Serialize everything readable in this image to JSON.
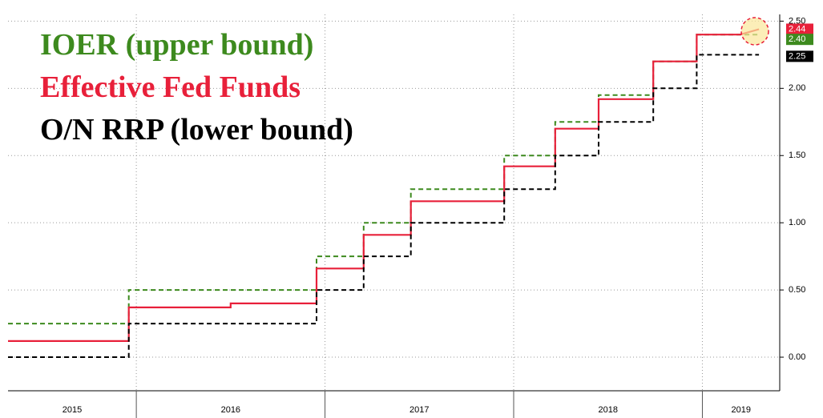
{
  "chart_data": {
    "type": "step-line",
    "xlim": [
      2015.32,
      2019.41
    ],
    "xticks": [
      2016,
      2017,
      2018,
      2019
    ],
    "x_categories": [
      "2015",
      "2016",
      "2017",
      "2018",
      "2019"
    ],
    "ylim": [
      -0.25,
      2.55
    ],
    "yticks": [
      {
        "value": 0,
        "label": "0.00"
      },
      {
        "value": 0.5,
        "label": "0.50"
      },
      {
        "value": 1,
        "label": "1.00"
      },
      {
        "value": 1.5,
        "label": "1.50"
      },
      {
        "value": 2,
        "label": "2.00"
      },
      {
        "value": 2.5,
        "label": "2.50"
      }
    ],
    "grid": true,
    "series": [
      {
        "name": "IOER (upper bound)",
        "color": "#3d8a1e",
        "dash": true,
        "last_label": "2.40",
        "x": [
          2015.32,
          2015.96,
          2015.96,
          2016.955,
          2016.955,
          2017.205,
          2017.205,
          2017.455,
          2017.455,
          2017.95,
          2017.95,
          2018.22,
          2018.22,
          2018.45,
          2018.45,
          2018.74,
          2018.74,
          2018.97,
          2018.97,
          2019.3
        ],
        "values": [
          0.25,
          0.25,
          0.5,
          0.5,
          0.75,
          0.75,
          1.0,
          1.0,
          1.25,
          1.25,
          1.5,
          1.5,
          1.75,
          1.75,
          1.95,
          1.95,
          2.2,
          2.2,
          2.4,
          2.4
        ]
      },
      {
        "name": "Effective Fed Funds",
        "color": "#e8203a",
        "dash": false,
        "last_label": "2.44",
        "x": [
          2015.32,
          2015.96,
          2015.96,
          2016.5,
          2016.5,
          2016.955,
          2016.955,
          2017.205,
          2017.205,
          2017.455,
          2017.455,
          2017.95,
          2017.95,
          2018.22,
          2018.22,
          2018.45,
          2018.45,
          2018.74,
          2018.74,
          2018.97,
          2018.97,
          2019.2,
          2019.3
        ],
        "values": [
          0.12,
          0.12,
          0.37,
          0.37,
          0.4,
          0.4,
          0.66,
          0.66,
          0.91,
          0.91,
          1.16,
          1.16,
          1.42,
          1.42,
          1.7,
          1.7,
          1.92,
          1.92,
          2.2,
          2.2,
          2.4,
          2.4,
          2.44
        ]
      },
      {
        "name": "O/N RRP (lower bound)",
        "color": "#000000",
        "dash": true,
        "last_label": "2.25",
        "x": [
          2015.32,
          2015.96,
          2015.96,
          2016.955,
          2016.955,
          2017.205,
          2017.205,
          2017.455,
          2017.455,
          2017.95,
          2017.95,
          2018.22,
          2018.22,
          2018.45,
          2018.45,
          2018.74,
          2018.74,
          2018.97,
          2018.97,
          2019.3
        ],
        "values": [
          0,
          0,
          0.25,
          0.25,
          0.5,
          0.5,
          0.75,
          0.75,
          1.0,
          1.0,
          1.25,
          1.25,
          1.5,
          1.5,
          1.75,
          1.75,
          2.0,
          2.0,
          2.25,
          2.25
        ]
      }
    ]
  }
}
